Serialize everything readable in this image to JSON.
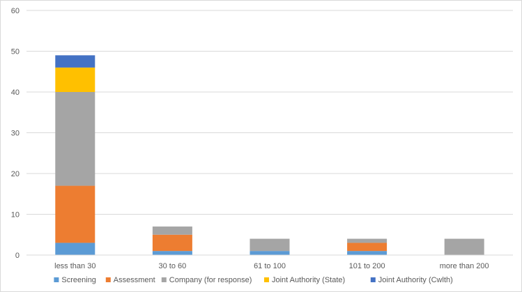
{
  "chart_data": {
    "type": "bar",
    "stacked": true,
    "title": "",
    "xlabel": "",
    "ylabel": "",
    "ylim": [
      0,
      60
    ],
    "y_ticks": [
      "0",
      "10",
      "20",
      "30",
      "40",
      "50",
      "60"
    ],
    "grid": true,
    "legend_position": "bottom",
    "categories": [
      "less than 30",
      "30 to 60",
      "61 to 100",
      "101 to 200",
      "more than 200"
    ],
    "series": [
      {
        "name": "Screening",
        "color": "#5b9bd5",
        "values": [
          3,
          1,
          1,
          1,
          0
        ]
      },
      {
        "name": "Assessment",
        "color": "#ed7d31",
        "values": [
          14,
          4,
          0,
          2,
          0
        ]
      },
      {
        "name": "Company (for response)",
        "color": "#a5a5a5",
        "values": [
          23,
          2,
          3,
          1,
          4
        ]
      },
      {
        "name": "Joint Authority (State)",
        "color": "#ffc000",
        "values": [
          6,
          0,
          0,
          0,
          0
        ]
      },
      {
        "name": "Joint Authority (Cwlth)",
        "color": "#4472c4",
        "values": [
          3,
          0,
          0,
          0,
          0
        ]
      }
    ]
  }
}
